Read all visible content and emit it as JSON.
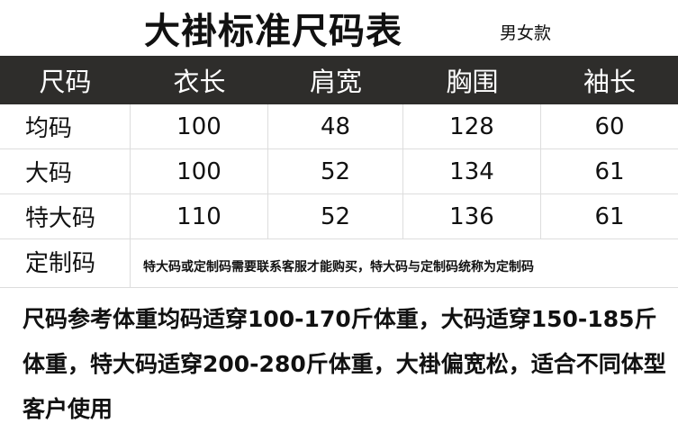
{
  "title": "大褂标准尺码表",
  "subtitle": "男女款",
  "table": {
    "headers": [
      "尺码",
      "衣长",
      "肩宽",
      "胸围",
      "袖长"
    ],
    "rows": [
      {
        "size": "均码",
        "values": [
          "100",
          "48",
          "128",
          "60"
        ]
      },
      {
        "size": "大码",
        "values": [
          "100",
          "52",
          "134",
          "61"
        ]
      },
      {
        "size": "特大码",
        "values": [
          "110",
          "52",
          "136",
          "61"
        ]
      }
    ],
    "custom_label": "定制码",
    "custom_note": "特大码或定制码需要联系客服才能购买，特大码与定制码统称为定制码"
  },
  "description": "尺码参考体重均码适穿100-170斤体重，大码适穿150-185斤体重，特大码适穿200-280斤体重，大褂偏宽松，适合不同体型客户使用"
}
